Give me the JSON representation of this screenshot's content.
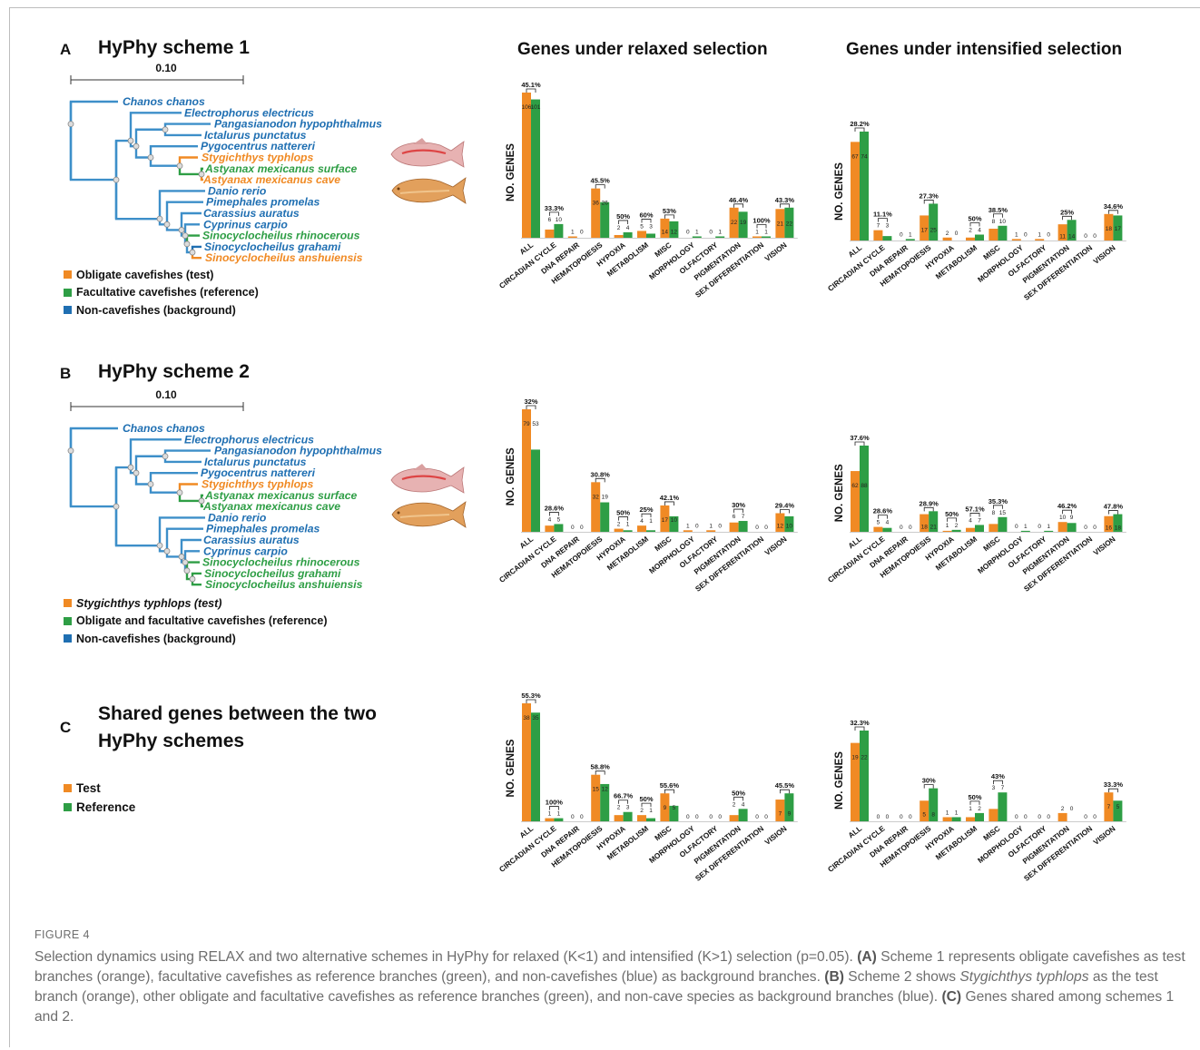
{
  "colors": {
    "orange": "#f08a24",
    "green": "#2e9e45",
    "blue": "#1f6fb2",
    "tree": "#3d8fc9"
  },
  "panels": [
    {
      "letter": "A",
      "title_lines": [
        "HyPhy scheme 1"
      ],
      "scale": "0.10",
      "legend": [
        {
          "color": "#f08a24",
          "label": "Obligate cavefishes (test)"
        },
        {
          "color": "#2e9e45",
          "label": "Facultative cavefishes (reference)"
        },
        {
          "color": "#1f6fb2",
          "label": "Non-cavefishes (background)"
        }
      ],
      "taxa": [
        {
          "name": "Chanos chanos",
          "color": "blue"
        },
        {
          "name": "Electrophorus electricus",
          "color": "blue"
        },
        {
          "name": "Pangasianodon hypophthalmus",
          "color": "blue"
        },
        {
          "name": "Ictalurus punctatus",
          "color": "blue"
        },
        {
          "name": "Pygocentrus nattereri",
          "color": "blue"
        },
        {
          "name": "Stygichthys typhlops",
          "color": "orange"
        },
        {
          "name": "Astyanax mexicanus surface",
          "color": "green"
        },
        {
          "name": "Astyanax mexicanus cave",
          "color": "orange"
        },
        {
          "name": "Danio rerio",
          "color": "blue"
        },
        {
          "name": "Pimephales promelas",
          "color": "blue"
        },
        {
          "name": "Carassius auratus",
          "color": "blue"
        },
        {
          "name": "Cyprinus carpio",
          "color": "blue"
        },
        {
          "name": "Sinocyclocheilus rhinocerous",
          "color": "green"
        },
        {
          "name": "Sinocyclocheilus grahami",
          "color": "blue"
        },
        {
          "name": "Sinocyclocheilus anshuiensis",
          "color": "orange"
        }
      ]
    },
    {
      "letter": "B",
      "title_lines": [
        "HyPhy scheme 2"
      ],
      "scale": "0.10",
      "legend": [
        {
          "color": "#f08a24",
          "label": "Stygichthys typhlops (test)"
        },
        {
          "color": "#2e9e45",
          "label": "Obligate and facultative cavefishes (reference)"
        },
        {
          "color": "#1f6fb2",
          "label": "Non-cavefishes (background)"
        }
      ],
      "taxa": [
        {
          "name": "Chanos chanos",
          "color": "blue"
        },
        {
          "name": "Electrophorus electricus",
          "color": "blue"
        },
        {
          "name": "Pangasianodon hypophthalmus",
          "color": "blue"
        },
        {
          "name": "Ictalurus punctatus",
          "color": "blue"
        },
        {
          "name": "Pygocentrus nattereri",
          "color": "blue"
        },
        {
          "name": "Stygichthys typhlops",
          "color": "orange"
        },
        {
          "name": "Astyanax mexicanus surface",
          "color": "green"
        },
        {
          "name": "Astyanax mexicanus cave",
          "color": "green"
        },
        {
          "name": "Danio rerio",
          "color": "blue"
        },
        {
          "name": "Pimephales promelas",
          "color": "blue"
        },
        {
          "name": "Carassius auratus",
          "color": "blue"
        },
        {
          "name": "Cyprinus carpio",
          "color": "blue"
        },
        {
          "name": "Sinocyclocheilus rhinocerous",
          "color": "green"
        },
        {
          "name": "Sinocyclocheilus grahami",
          "color": "green"
        },
        {
          "name": "Sinocyclocheilus anshuiensis",
          "color": "green"
        }
      ]
    },
    {
      "letter": "C",
      "title_lines": [
        "Shared genes between the two",
        "HyPhy schemes"
      ],
      "legend": [
        {
          "color": "#f08a24",
          "label": "Test"
        },
        {
          "color": "#2e9e45",
          "label": "Reference"
        }
      ]
    }
  ],
  "column_titles": [
    "Genes under relaxed selection",
    "Genes under intensified selection"
  ],
  "chart_data": [
    {
      "type": "bar",
      "panel": "A",
      "title": "Genes under relaxed selection",
      "ylabel": "NO. GENES",
      "categories": [
        "ALL",
        "CIRCADIAN CYCLE",
        "DNA REPAIR",
        "HEMATOPOIESIS",
        "HYPOXIA",
        "METABOLISM",
        "MISC",
        "MORPHOLOGY",
        "OLFACTORY",
        "PIGMENTATION",
        "SEX DIFFERENTIATION",
        "VISION"
      ],
      "series": [
        {
          "values": [
            106,
            6,
            1,
            36,
            2,
            5,
            14,
            0,
            0,
            22,
            1,
            21
          ]
        },
        {
          "values": [
            101,
            10,
            0,
            26,
            4,
            3,
            12,
            1,
            1,
            19,
            1,
            22
          ]
        }
      ],
      "percent_labels": [
        "45.1%",
        "33.3%",
        "",
        "45.5%",
        "50%",
        "60%",
        "53%",
        "",
        "",
        "46.4%",
        "100%",
        "43.3%"
      ]
    },
    {
      "type": "bar",
      "panel": "A",
      "title": "Genes under intensified selection",
      "ylabel": "NO. GENES",
      "categories": [
        "ALL",
        "CIRCADIAN CYCLE",
        "DNA REPAIR",
        "HEMATOPOIESIS",
        "HYPOXIA",
        "METABOLISM",
        "MISC",
        "MORPHOLOGY",
        "OLFACTORY",
        "PIGMENTATION",
        "SEX DIFFERENTIATION",
        "VISION"
      ],
      "series": [
        {
          "values": [
            67,
            7,
            0,
            17,
            2,
            2,
            8,
            1,
            1,
            11,
            0,
            18
          ]
        },
        {
          "values": [
            74,
            3,
            1,
            25,
            0,
            4,
            10,
            0,
            0,
            14,
            0,
            17
          ]
        }
      ],
      "percent_labels": [
        "28.2%",
        "11.1%",
        "",
        "27.3%",
        "",
        "50%",
        "38.5%",
        "",
        "",
        "25%",
        "",
        "34.6%"
      ]
    },
    {
      "type": "bar",
      "panel": "B",
      "ylabel": "NO. GENES",
      "categories": [
        "ALL",
        "CIRCADIAN CYCLE",
        "DNA REPAIR",
        "HEMATOPOIESIS",
        "HYPOXIA",
        "METABOLISM",
        "MISC",
        "MORPHOLOGY",
        "OLFACTORY",
        "PIGMENTATION",
        "SEX DIFFERENTIATION",
        "VISION"
      ],
      "series": [
        {
          "values": [
            79,
            4,
            0,
            32,
            2,
            4,
            17,
            1,
            1,
            6,
            0,
            12
          ]
        },
        {
          "values": [
            53,
            5,
            0,
            19,
            1,
            1,
            10,
            0,
            0,
            7,
            0,
            10
          ]
        }
      ],
      "percent_labels": [
        "32%",
        "28.6%",
        "",
        "30.8%",
        "50%",
        "25%",
        "42.1%",
        "",
        "",
        "30%",
        "",
        "29.4%"
      ]
    },
    {
      "type": "bar",
      "panel": "B",
      "ylabel": "NO. GENES",
      "categories": [
        "ALL",
        "CIRCADIAN CYCLE",
        "DNA REPAIR",
        "HEMATOPOIESIS",
        "HYPOXIA",
        "METABOLISM",
        "MISC",
        "MORPHOLOGY",
        "OLFACTORY",
        "PIGMENTATION",
        "SEX DIFFERENTIATION",
        "VISION"
      ],
      "series": [
        {
          "values": [
            62,
            5,
            0,
            18,
            1,
            4,
            8,
            0,
            0,
            10,
            0,
            16
          ]
        },
        {
          "values": [
            88,
            4,
            0,
            21,
            2,
            7,
            15,
            1,
            1,
            9,
            0,
            18
          ]
        }
      ],
      "percent_labels": [
        "37.6%",
        "28.6%",
        "",
        "28.9%",
        "50%",
        "57.1%",
        "35.3%",
        "",
        "",
        "46.2%",
        "",
        "47.8%"
      ]
    },
    {
      "type": "bar",
      "panel": "C",
      "ylabel": "NO. GENES",
      "categories": [
        "ALL",
        "CIRCADIAN CYCLE",
        "DNA REPAIR",
        "HEMATOPOIESIS",
        "HYPOXIA",
        "METABOLISM",
        "MISC",
        "MORPHOLOGY",
        "OLFACTORY",
        "PIGMENTATION",
        "SEX DIFFERENTIATION",
        "VISION"
      ],
      "series": [
        {
          "values": [
            38,
            1,
            0,
            15,
            2,
            2,
            9,
            0,
            0,
            2,
            0,
            7
          ]
        },
        {
          "values": [
            35,
            1,
            0,
            12,
            3,
            1,
            5,
            0,
            0,
            4,
            0,
            9
          ]
        }
      ],
      "percent_labels": [
        "55.3%",
        "100%",
        "",
        "58.8%",
        "66.7%",
        "50%",
        "55.6%",
        "",
        "",
        "50%",
        "",
        "45.5%"
      ]
    },
    {
      "type": "bar",
      "panel": "C",
      "ylabel": "NO. GENES",
      "categories": [
        "ALL",
        "CIRCADIAN CYCLE",
        "DNA REPAIR",
        "HEMATOPOIESIS",
        "HYPOXIA",
        "METABOLISM",
        "MISC",
        "MORPHOLOGY",
        "OLFACTORY",
        "PIGMENTATION",
        "SEX DIFFERENTIATION",
        "VISION"
      ],
      "series": [
        {
          "values": [
            19,
            0,
            0,
            5,
            1,
            1,
            3,
            0,
            0,
            2,
            0,
            7
          ]
        },
        {
          "values": [
            22,
            0,
            0,
            8,
            1,
            2,
            7,
            0,
            0,
            0,
            0,
            5
          ]
        }
      ],
      "percent_labels": [
        "32.3%",
        "",
        "",
        "30%",
        "",
        "50%",
        "43%",
        "",
        "",
        "",
        "",
        "33.3%"
      ]
    }
  ],
  "caption": {
    "figure_label": "FIGURE 4",
    "line1": "Selection dynamics using RELAX and two alternative schemes in HyPhy for relaxed (K<1) and intensified (K>1) selection (p=0.05).",
    "a_label": "(A)",
    "a_text": " Scheme 1 represents obligate cavefishes as test branches (orange), facultative cavefishes as reference branches (green), and non-cavefishes (blue) as background branches.",
    "b_label": "(B)",
    "b_text_1": " Scheme 2 shows ",
    "b_species": "Stygichthys typhlops",
    "b_text_2": " as the test branch (orange), other obligate and facultative cavefishes as reference branches (green), and non-cave species as background branches (blue).",
    "c_label": "(C)",
    "c_text": " Genes shared among schemes 1 and 2."
  }
}
